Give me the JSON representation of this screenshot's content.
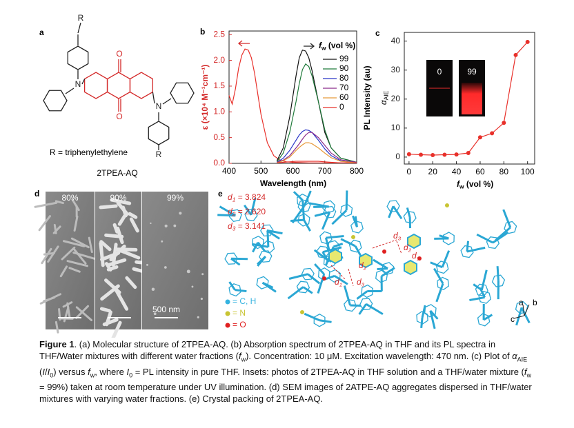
{
  "figure": {
    "panel_a": {
      "panel_label": "a",
      "r_top": "R",
      "r_bottom": "R",
      "o_top": "O",
      "o_bottom": "O",
      "n_left": "N",
      "n_right": "N",
      "substituent": "R = triphenylethylene",
      "compound": "2TPEA-AQ"
    },
    "panel_d": {
      "panel_label": "d",
      "labels": [
        "80%",
        "90%",
        "99%"
      ],
      "scale_bar": "500 nm"
    },
    "panel_e": {
      "panel_label": "e",
      "distances": [
        [
          {
            "text": "d",
            "style": "italic"
          },
          {
            "text": "1",
            "style": "italic sub"
          },
          " = 3.824"
        ],
        [
          {
            "text": "d",
            "style": "italic"
          },
          {
            "text": "2",
            "style": "italic sub"
          },
          " = 2.620"
        ],
        [
          {
            "text": "d",
            "style": "italic"
          },
          {
            "text": "3",
            "style": "italic sub"
          },
          " = 3.141"
        ]
      ],
      "contacts": [
        [
          {
            "text": "d",
            "style": "italic"
          },
          {
            "text": "1",
            "style": "italic sub"
          }
        ],
        [
          {
            "text": "d",
            "style": "italic"
          },
          {
            "text": "2",
            "style": "italic sub"
          }
        ],
        [
          {
            "text": "d",
            "style": "italic"
          },
          {
            "text": "3",
            "style": "italic sub"
          }
        ],
        [
          {
            "text": "d",
            "style": "italic"
          },
          {
            "text": "3",
            "style": "italic sub"
          }
        ],
        [
          {
            "text": "d",
            "style": "italic"
          },
          {
            "text": "2",
            "style": "italic sub"
          }
        ],
        [
          {
            "text": "d",
            "style": "italic"
          },
          {
            "text": "1",
            "style": "italic sub"
          }
        ]
      ],
      "legend": [
        {
          "label": "= C, H",
          "color": "#35b3e0"
        },
        {
          "label": "= N",
          "color": "#c8c432"
        },
        {
          "label": "= O",
          "color": "#e02020"
        }
      ],
      "axes": [
        "a",
        "b",
        "c"
      ]
    },
    "caption": [
      {
        "text": "Figure 1",
        "style": "bold"
      },
      ". (a) Molecular structure of 2TPEA-AQ. (b) Absorption spectrum of 2TPEA-AQ in THF and its PL spectra in THF/Water mixtures with different water fractions (",
      {
        "text": "f",
        "style": "italic"
      },
      {
        "text": "w",
        "style": "sub"
      },
      "). Concentration: 10 μM. Excitation wavelength: 470 nm. (c) Plot of ",
      {
        "text": "α",
        "style": "italic"
      },
      {
        "text": "AIE",
        "style": "sub"
      },
      " (",
      {
        "text": "I",
        "style": "italic"
      },
      "/",
      {
        "text": "I",
        "style": "italic"
      },
      {
        "text": "0",
        "style": "sub"
      },
      ") versus ",
      {
        "text": "f",
        "style": "italic"
      },
      {
        "text": "w",
        "style": "sub"
      },
      ", where ",
      {
        "text": "I",
        "style": "italic"
      },
      {
        "text": "0",
        "style": "sub"
      },
      " = PL intensity in pure THF. Insets: photos of 2TPEA-AQ in THF solution and a THF/water mixture (",
      {
        "text": "f",
        "style": "italic"
      },
      {
        "text": "w",
        "style": "sub"
      },
      " = 99%) taken at room temperature under UV illumination. (d) SEM images of 2ATPE-AQ aggregates dispersed in THF/water mixtures with varying water fractions. (e) Crystal packing of 2TPEA-AQ."
    ]
  },
  "chart_data": [
    {
      "panel_label": "b",
      "type": "line",
      "xlabel": "Wavelength (nm)",
      "ylabel": "ε (×10⁴ M⁻¹cm⁻¹)",
      "legend_title": [
        {
          "text": "f",
          "style": "italic"
        },
        {
          "text": "w",
          "style": "sub"
        },
        " (vol %)"
      ],
      "legend": "upper right",
      "xlim": [
        400,
        800
      ],
      "ylim": [
        0,
        2.57
      ],
      "xticks": [
        400,
        500,
        600,
        700,
        800
      ],
      "yticks": [
        {
          "value": 0,
          "label": "0.0"
        },
        0.5,
        {
          "value": 1,
          "label": "1.0"
        },
        1.5,
        {
          "value": 2,
          "label": "2.0"
        },
        2.5
      ],
      "series": [
        {
          "color": "#e8302a",
          "x": [
            400,
            410,
            420,
            430,
            440,
            450,
            460,
            470,
            480,
            490,
            500,
            520,
            540,
            560,
            580,
            600,
            650,
            700,
            750,
            800
          ],
          "values": [
            1.32,
            1.15,
            1.45,
            1.85,
            2.1,
            2.22,
            2.2,
            2.05,
            1.75,
            1.35,
            0.95,
            0.4,
            0.15,
            0.06,
            0.03,
            0.02,
            0.01,
            0.01,
            0.01,
            0.01
          ]
        },
        {
          "name": "99",
          "color": "#111111",
          "x": [
            550,
            570,
            590,
            610,
            620,
            630,
            640,
            650,
            660,
            680,
            700,
            720,
            750,
            800
          ],
          "values": [
            0.05,
            0.3,
            0.9,
            1.7,
            2.05,
            2.2,
            2.18,
            2.05,
            1.8,
            1.2,
            0.6,
            0.3,
            0.1,
            0.02
          ]
        },
        {
          "name": "90",
          "color": "#1f7a3a",
          "x": [
            550,
            570,
            590,
            610,
            620,
            630,
            640,
            650,
            660,
            680,
            700,
            720,
            750,
            800
          ],
          "values": [
            0.03,
            0.2,
            0.6,
            1.2,
            1.55,
            1.82,
            1.93,
            1.88,
            1.7,
            1.2,
            0.65,
            0.3,
            0.1,
            0.02
          ]
        },
        {
          "name": "80",
          "color": "#2a36c8",
          "x": [
            550,
            570,
            590,
            610,
            620,
            630,
            640,
            650,
            660,
            680,
            700,
            720,
            750,
            800
          ],
          "values": [
            0.02,
            0.1,
            0.25,
            0.45,
            0.55,
            0.62,
            0.65,
            0.64,
            0.6,
            0.45,
            0.28,
            0.15,
            0.05,
            0.01
          ]
        },
        {
          "name": "70",
          "color": "#8a2a8a",
          "x": [
            550,
            570,
            590,
            610,
            620,
            630,
            640,
            650,
            660,
            680,
            700,
            720,
            750,
            800
          ],
          "values": [
            0.02,
            0.06,
            0.15,
            0.3,
            0.38,
            0.47,
            0.55,
            0.6,
            0.6,
            0.5,
            0.35,
            0.2,
            0.07,
            0.02
          ]
        },
        {
          "name": "60",
          "color": "#e89a3a",
          "x": [
            550,
            570,
            590,
            610,
            620,
            630,
            640,
            650,
            660,
            680,
            700,
            720,
            750,
            800
          ],
          "values": [
            0.01,
            0.05,
            0.12,
            0.25,
            0.31,
            0.36,
            0.4,
            0.4,
            0.38,
            0.3,
            0.2,
            0.11,
            0.04,
            0.01
          ]
        },
        {
          "name": "0",
          "color": "#e8302a",
          "x": [
            550,
            570,
            590,
            610,
            620,
            630,
            640,
            650,
            660,
            680,
            700,
            720,
            750,
            800
          ],
          "values": [
            0.01,
            0.02,
            0.03,
            0.04,
            0.04,
            0.04,
            0.04,
            0.04,
            0.04,
            0.04,
            0.03,
            0.02,
            0.01,
            0.01
          ]
        }
      ]
    },
    {
      "panel_label": "c",
      "type": "line",
      "markers": true,
      "color": "#e8302a",
      "xlabel": [
        {
          "text": "f",
          "style": "italic"
        },
        {
          "text": "w",
          "style": "sub"
        },
        " (vol %)"
      ],
      "ylabel": "PL Intensity (au)",
      "y2label": [
        {
          "text": "α",
          "style": "italic"
        },
        {
          "text": "AIE",
          "style": "sub"
        }
      ],
      "insets": [
        "0",
        "99"
      ],
      "xlim": [
        -4,
        106
      ],
      "ylim": [
        -2.4,
        43
      ],
      "xticks": [
        0,
        20,
        40,
        60,
        80,
        100
      ],
      "yticks": [
        0,
        10,
        20,
        30,
        40
      ],
      "x": [
        0,
        10,
        20,
        30,
        40,
        50,
        60,
        70,
        80,
        90,
        100
      ],
      "values": [
        1,
        0.8,
        0.7,
        0.8,
        0.9,
        1.4,
        6.8,
        8.2,
        11.8,
        35.2,
        39.7
      ]
    }
  ]
}
